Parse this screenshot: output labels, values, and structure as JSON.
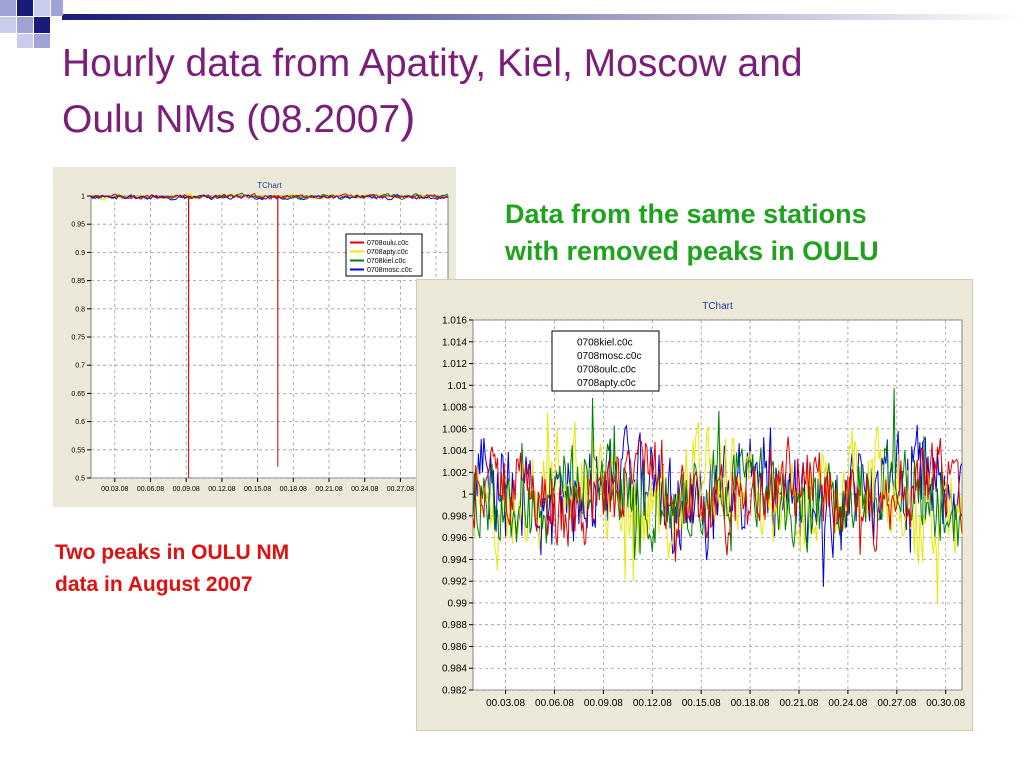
{
  "slide": {
    "title_line1": "Hourly data from Apatity, Kiel, Moscow and",
    "title_line2": "Oulu NMs (08.2007",
    "title_paren": ")",
    "note_green_line1": "Data from the same stations",
    "note_green_line2": "with removed peaks in OULU",
    "note_red_line1": "Two peaks in OULU NM",
    "note_red_line2": "data in  August 2007",
    "colors": {
      "title": "#7B1E7A",
      "note_green": "#1FA31F",
      "note_red": "#E01010"
    }
  },
  "chart_data": [
    {
      "type": "line",
      "title": "TChart",
      "x_tick_labels": [
        "00.03.08",
        "00.06.08",
        "00.09.08",
        "00.12.08",
        "00.15.08",
        "00.18.08",
        "00.21.08",
        "00.24.08",
        "00.27.08",
        "00.30.08"
      ],
      "ylim": [
        0.5,
        1.0
      ],
      "y_ticks": [
        1,
        0.95,
        0.9,
        0.85,
        0.8,
        0.75,
        0.7,
        0.65,
        0.6,
        0.55,
        0.5
      ],
      "grid": true,
      "legend_position": "top-right",
      "series": [
        {
          "name": "0708oulu.c0c",
          "color": "#E00000",
          "baseline": 0.999,
          "peaks": [
            {
              "day": 9.2,
              "value": 0.5
            },
            {
              "day": 16.7,
              "value": 0.52
            }
          ]
        },
        {
          "name": "0708apty.c0c",
          "color": "#E8E800",
          "baseline": 0.999
        },
        {
          "name": "0708kiel.c0c",
          "color": "#008000",
          "baseline": 0.999
        },
        {
          "name": "0708mosc.c0c",
          "color": "#0000E0",
          "baseline": 0.998
        }
      ]
    },
    {
      "type": "line",
      "title": "TChart",
      "x_tick_labels": [
        "00.03.08",
        "00.06.08",
        "00.09.08",
        "00.12.08",
        "00.15.08",
        "00.18.08",
        "00.21.08",
        "00.24.08",
        "00.27.08",
        "00.30.08"
      ],
      "ylim": [
        0.982,
        1.016
      ],
      "y_ticks": [
        1.016,
        1.014,
        1.012,
        1.01,
        1.008,
        1.006,
        1.004,
        1.002,
        1,
        0.998,
        0.996,
        0.994,
        0.992,
        0.99,
        0.988,
        0.986,
        0.984,
        0.982
      ],
      "grid": true,
      "legend_position": "top-left",
      "series": [
        {
          "name": "0708kiel.c0c",
          "color": "#E00000",
          "amplitude": 0.004
        },
        {
          "name": "0708mosc.c0c",
          "color": "#0000E0",
          "amplitude": 0.005
        },
        {
          "name": "0708oulc.c0c",
          "color": "#008000",
          "amplitude": 0.004
        },
        {
          "name": "0708apty.c0c",
          "color": "#E8E800",
          "amplitude": 0.005
        }
      ]
    }
  ]
}
